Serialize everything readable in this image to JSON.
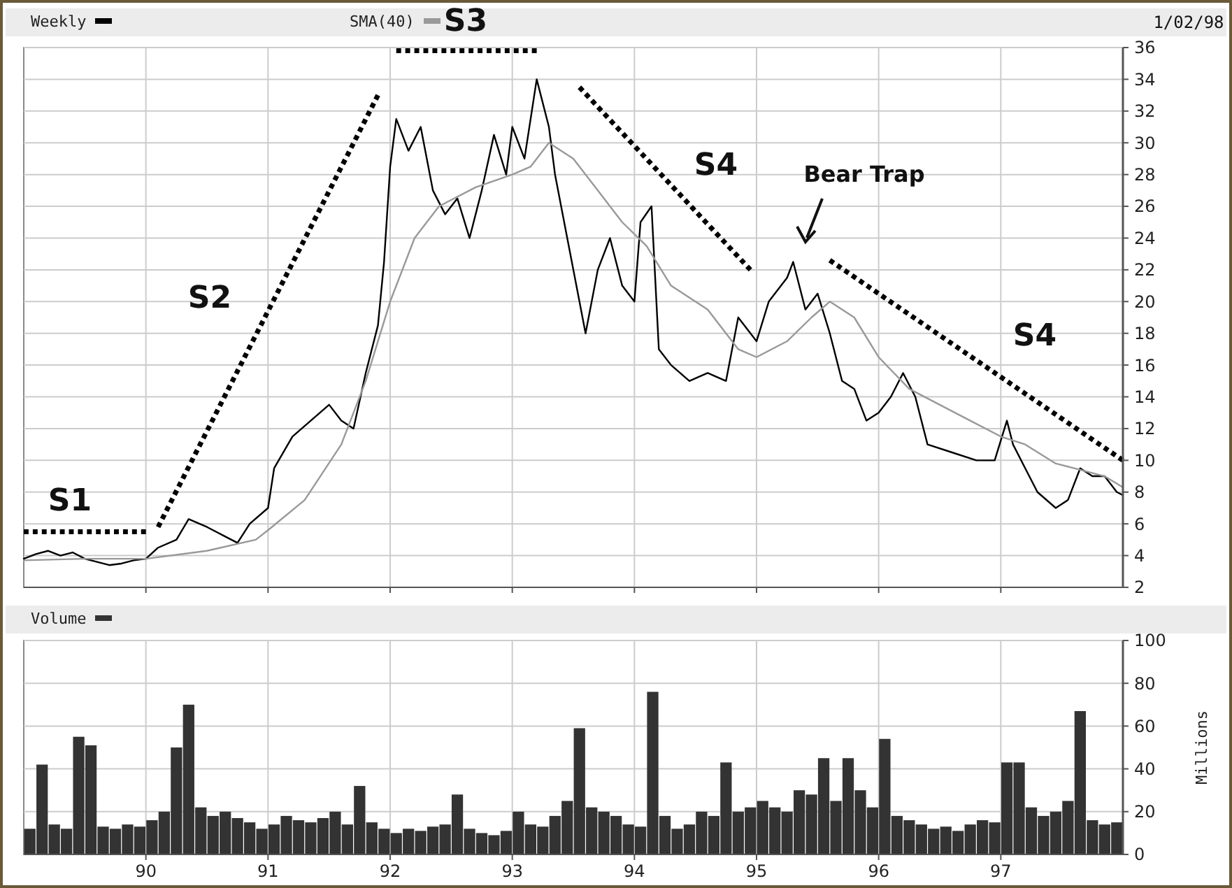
{
  "chart_data": [
    {
      "type": "line",
      "xlim": [
        1989,
        1998
      ],
      "xticks": [
        {
          "value": 1990,
          "label": null
        },
        {
          "value": 1991,
          "label": null
        },
        {
          "value": 1992,
          "label": null
        },
        {
          "value": 1993,
          "label": null
        },
        {
          "value": 1994,
          "label": null
        },
        {
          "value": 1995,
          "label": null
        },
        {
          "value": 1996,
          "label": null
        },
        {
          "value": 1997,
          "label": null
        }
      ],
      "ylim": [
        2,
        36
      ],
      "yticks": [
        2,
        4,
        6,
        8,
        10,
        12,
        14,
        16,
        18,
        20,
        22,
        24,
        26,
        28,
        30,
        32,
        34,
        36
      ],
      "grid": true,
      "legend": "top left",
      "tick_labels": "y",
      "series": [
        {
          "name": "Weekly",
          "color": "#000000",
          "x": [
            1989.0,
            1989.1,
            1989.2,
            1989.3,
            1989.4,
            1989.5,
            1989.6,
            1989.7,
            1989.8,
            1989.9,
            1990.0,
            1990.1,
            1990.25,
            1990.35,
            1990.5,
            1990.65,
            1990.75,
            1990.85,
            1991.0,
            1991.05,
            1991.2,
            1991.35,
            1991.5,
            1991.6,
            1991.7,
            1991.8,
            1991.9,
            1991.95,
            1992.0,
            1992.05,
            1992.15,
            1992.25,
            1992.35,
            1992.45,
            1992.55,
            1992.65,
            1992.75,
            1992.85,
            1992.95,
            1993.0,
            1993.1,
            1993.2,
            1993.3,
            1993.35,
            1993.45,
            1993.55,
            1993.6,
            1993.7,
            1993.8,
            1993.9,
            1994.0,
            1994.05,
            1994.14,
            1994.2,
            1994.3,
            1994.45,
            1994.6,
            1994.75,
            1994.85,
            1995.0,
            1995.1,
            1995.25,
            1995.3,
            1995.4,
            1995.5,
            1995.6,
            1995.7,
            1995.8,
            1995.9,
            1996.0,
            1996.1,
            1996.2,
            1996.3,
            1996.4,
            1996.6,
            1996.8,
            1996.95,
            1997.05,
            1997.1,
            1997.2,
            1997.3,
            1997.45,
            1997.55,
            1997.65,
            1997.75,
            1997.85,
            1997.95,
            1998.0
          ],
          "values": [
            3.8,
            4.1,
            4.3,
            4.0,
            4.2,
            3.8,
            3.6,
            3.4,
            3.5,
            3.7,
            3.8,
            4.5,
            5.0,
            6.3,
            5.8,
            5.2,
            4.8,
            6.0,
            7.0,
            9.5,
            11.5,
            12.5,
            13.5,
            12.5,
            12.0,
            15.5,
            18.5,
            22.5,
            28.5,
            31.5,
            29.5,
            31,
            27,
            25.5,
            26.5,
            24,
            27,
            30.5,
            28,
            31,
            29,
            34,
            31,
            28,
            24,
            20,
            18,
            22,
            24,
            21,
            20,
            25,
            26,
            17,
            16,
            15,
            15.5,
            15,
            19,
            17.5,
            20,
            21.5,
            22.5,
            19.5,
            20.5,
            18,
            15,
            14.5,
            12.5,
            13,
            14,
            15.5,
            14,
            11,
            10.5,
            10,
            10,
            12.5,
            11,
            9.5,
            8,
            7,
            7.5,
            9.5,
            9,
            9,
            8,
            7.8
          ]
        },
        {
          "name": "SMA(40)",
          "color": "#999999",
          "x": [
            1989.0,
            1989.5,
            1990.0,
            1990.5,
            1990.9,
            1991.0,
            1991.3,
            1991.6,
            1991.8,
            1992.0,
            1992.2,
            1992.4,
            1992.7,
            1993.0,
            1993.15,
            1993.3,
            1993.5,
            1993.7,
            1993.9,
            1994.1,
            1994.3,
            1994.6,
            1994.85,
            1995.0,
            1995.25,
            1995.45,
            1995.6,
            1995.8,
            1996.0,
            1996.25,
            1996.5,
            1996.75,
            1997.0,
            1997.2,
            1997.45,
            1997.6,
            1997.85,
            1998.0
          ],
          "values": [
            3.7,
            3.8,
            3.8,
            4.3,
            5.0,
            5.6,
            7.5,
            11,
            15,
            20,
            24,
            26,
            27.2,
            28,
            28.5,
            30,
            29,
            27,
            25,
            23.5,
            21,
            19.5,
            17,
            16.5,
            17.5,
            19,
            20,
            19,
            16.5,
            14.5,
            13.5,
            12.5,
            11.5,
            11,
            9.8,
            9.5,
            9,
            8.3
          ]
        },
        {
          "type": "line",
          "line_style": "dotted",
          "color": "#000000",
          "x": [
            1989.0,
            1990.0
          ],
          "values": [
            5.5,
            5.5
          ]
        },
        {
          "type": "line",
          "line_style": "dotted",
          "color": "#000000",
          "x": [
            1990.1,
            1991.9
          ],
          "values": [
            5.8,
            33
          ]
        },
        {
          "type": "line",
          "line_style": "dotted",
          "color": "#000000",
          "x": [
            1992.05,
            1993.2
          ],
          "values": [
            35.8,
            35.8
          ]
        },
        {
          "type": "line",
          "line_style": "dotted",
          "color": "#000000",
          "x": [
            1993.55,
            1994.95
          ],
          "values": [
            33.5,
            22
          ]
        },
        {
          "type": "line",
          "line_style": "dotted",
          "color": "#000000",
          "x": [
            1995.6,
            1998.0
          ],
          "values": [
            22.6,
            10
          ]
        }
      ],
      "annotations": [
        "1/02/98",
        "S1",
        "S2",
        "S3",
        "S4",
        "S4",
        "Bear Trap"
      ]
    },
    {
      "type": "bar",
      "xlim": [
        1989,
        1998
      ],
      "xticks": [
        {
          "value": 1990,
          "label": "90"
        },
        {
          "value": 1991,
          "label": "91"
        },
        {
          "value": 1992,
          "label": "92"
        },
        {
          "value": 1993,
          "label": "93"
        },
        {
          "value": 1994,
          "label": "94"
        },
        {
          "value": 1995,
          "label": "95"
        },
        {
          "value": 1996,
          "label": "96"
        },
        {
          "value": 1997,
          "label": "97"
        }
      ],
      "ylim": [
        0,
        100
      ],
      "yticks": [
        0,
        20,
        40,
        60,
        80,
        100
      ],
      "ylabel": "Millions",
      "grid": true,
      "legend": "top left",
      "x": [
        1989.05,
        1989.15,
        1989.25,
        1989.35,
        1989.45,
        1989.55,
        1989.65,
        1989.75,
        1989.85,
        1989.95,
        1990.05,
        1990.15,
        1990.25,
        1990.35,
        1990.45,
        1990.55,
        1990.65,
        1990.75,
        1990.85,
        1990.95,
        1991.05,
        1991.15,
        1991.25,
        1991.35,
        1991.45,
        1991.55,
        1991.65,
        1991.75,
        1991.85,
        1991.95,
        1992.05,
        1992.15,
        1992.25,
        1992.35,
        1992.45,
        1992.55,
        1992.65,
        1992.75,
        1992.85,
        1992.95,
        1993.05,
        1993.15,
        1993.25,
        1993.35,
        1993.45,
        1993.55,
        1993.65,
        1993.75,
        1993.85,
        1993.95,
        1994.05,
        1994.15,
        1994.25,
        1994.35,
        1994.45,
        1994.55,
        1994.65,
        1994.75,
        1994.85,
        1994.95,
        1995.05,
        1995.15,
        1995.25,
        1995.35,
        1995.45,
        1995.55,
        1995.65,
        1995.75,
        1995.85,
        1995.95,
        1996.05,
        1996.15,
        1996.25,
        1996.35,
        1996.45,
        1996.55,
        1996.65,
        1996.75,
        1996.85,
        1996.95,
        1997.05,
        1997.15,
        1997.25,
        1997.35,
        1997.45,
        1997.55,
        1997.65,
        1997.75,
        1997.85,
        1997.95
      ],
      "series": [
        {
          "name": "Volume",
          "color": "#333333",
          "values": [
            12,
            42,
            14,
            12,
            55,
            51,
            13,
            12,
            14,
            13,
            16,
            20,
            50,
            70,
            22,
            18,
            20,
            17,
            15,
            12,
            14,
            18,
            16,
            15,
            17,
            20,
            14,
            32,
            15,
            12,
            10,
            12,
            11,
            13,
            14,
            28,
            12,
            10,
            9,
            11,
            20,
            14,
            13,
            18,
            25,
            59,
            22,
            20,
            18,
            14,
            13,
            76,
            18,
            12,
            14,
            20,
            18,
            43,
            20,
            22,
            25,
            22,
            20,
            30,
            28,
            45,
            25,
            45,
            30,
            22,
            54,
            18,
            16,
            14,
            12,
            13,
            11,
            14,
            16,
            15,
            43,
            43,
            22,
            18,
            20,
            25,
            67,
            16,
            14,
            15
          ]
        }
      ]
    }
  ]
}
